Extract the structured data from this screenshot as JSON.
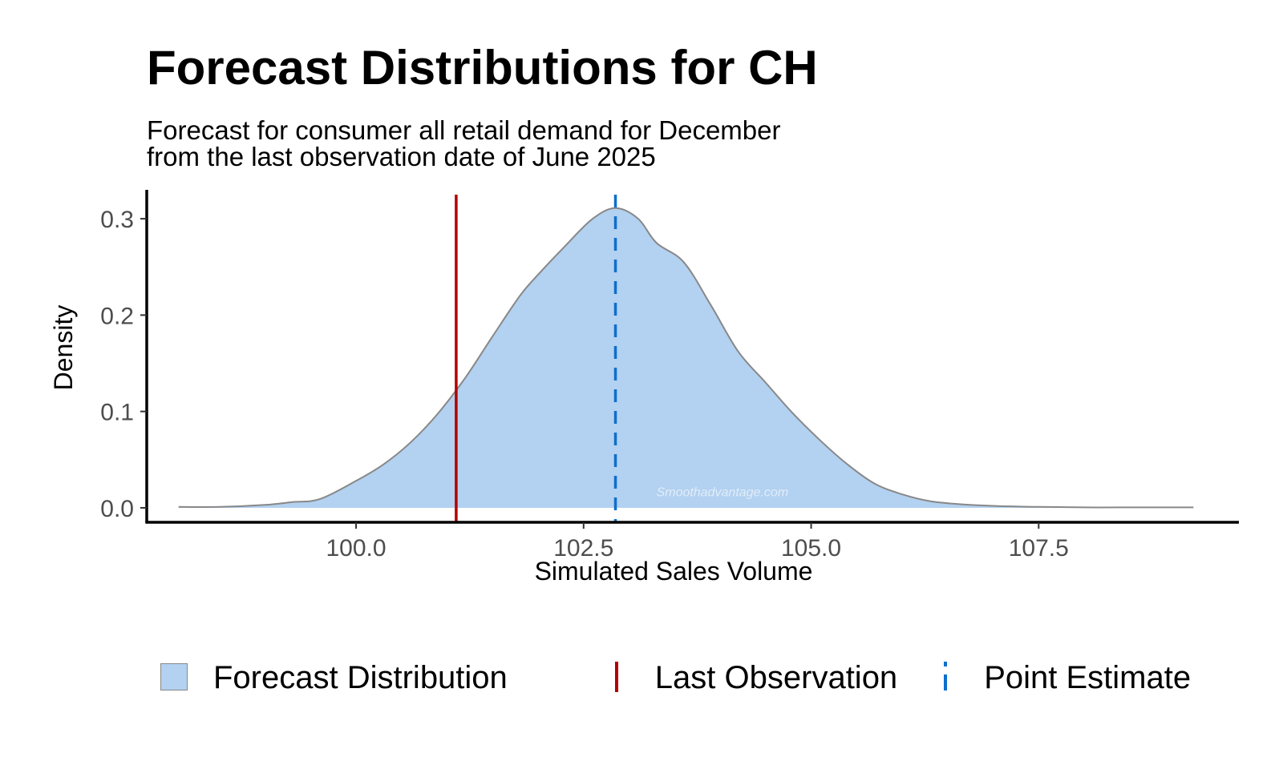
{
  "chart_data": {
    "type": "area",
    "title": "Forecast Distributions for CH",
    "subtitle": [
      "Forecast for consumer all retail demand for December",
      "from the last observation date of June 2025"
    ],
    "xlabel": "Simulated Sales Volume",
    "ylabel": "Density",
    "xlim": [
      97.7,
      109.7
    ],
    "ylim": [
      -0.015,
      0.325
    ],
    "x_ticks": [
      100.0,
      102.5,
      105.0,
      107.5
    ],
    "x_tick_labels": [
      "100.0",
      "102.5",
      "105.0",
      "107.5"
    ],
    "y_ticks": [
      0.0,
      0.1,
      0.2,
      0.3
    ],
    "y_tick_labels": [
      "0.0",
      "0.1",
      "0.2",
      "0.3"
    ],
    "grid": false,
    "legend_position": "bottom",
    "series": [
      {
        "name": "Forecast Distribution",
        "kind": "density",
        "color": "#b3d1f0",
        "outline_color": "#888888",
        "x": [
          98.05,
          98.5,
          99.0,
          99.3,
          99.6,
          100.0,
          100.3,
          100.6,
          100.9,
          101.2,
          101.5,
          101.8,
          102.0,
          102.3,
          102.6,
          102.85,
          103.1,
          103.3,
          103.6,
          103.9,
          104.2,
          104.5,
          104.8,
          105.1,
          105.4,
          105.7,
          106.0,
          106.3,
          106.6,
          107.0,
          107.5,
          108.0,
          108.5,
          109.2
        ],
        "y": [
          0.001,
          0.001,
          0.003,
          0.006,
          0.009,
          0.028,
          0.045,
          0.068,
          0.098,
          0.135,
          0.178,
          0.22,
          0.242,
          0.272,
          0.3,
          0.311,
          0.3,
          0.275,
          0.255,
          0.21,
          0.162,
          0.13,
          0.098,
          0.07,
          0.045,
          0.025,
          0.014,
          0.007,
          0.004,
          0.002,
          0.001,
          0.0005,
          0.0005,
          0.0005
        ]
      },
      {
        "name": "Last Observation",
        "kind": "vline",
        "x": 101.1,
        "color": "#b30000"
      },
      {
        "name": "Point Estimate",
        "kind": "vline_dashed",
        "x": 102.85,
        "color": "#0d6fcc"
      }
    ],
    "annotations": [
      "Smoothadvantage.com"
    ]
  }
}
